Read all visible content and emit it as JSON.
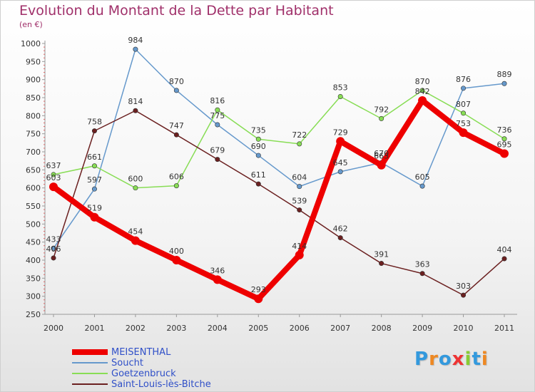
{
  "chart_data": {
    "type": "line",
    "title": "Evolution du Montant de la Dette par Habitant",
    "unit_label": "(en €)",
    "x": [
      "2000",
      "2001",
      "2002",
      "2003",
      "2004",
      "2005",
      "2006",
      "2007",
      "2008",
      "2009",
      "2010",
      "2011"
    ],
    "ylim": [
      250,
      1000
    ],
    "yticks": [
      250,
      300,
      350,
      400,
      450,
      500,
      550,
      600,
      650,
      700,
      750,
      800,
      850,
      900,
      950,
      1000
    ],
    "grid": false,
    "legend_position": "bottom-left",
    "series": [
      {
        "name": "MEISENTHAL",
        "color": "#ee0000",
        "values": [
          603,
          519,
          454,
          400,
          346,
          293,
          414,
          729,
          663,
          842,
          753,
          695
        ]
      },
      {
        "name": "Soucht",
        "color": "#6699cc",
        "values": [
          433,
          597,
          984,
          870,
          775,
          690,
          604,
          645,
          670,
          605,
          876,
          889
        ]
      },
      {
        "name": "Goetzenbruck",
        "color": "#88dd55",
        "values": [
          637,
          661,
          600,
          606,
          816,
          735,
          722,
          853,
          792,
          870,
          807,
          736
        ]
      },
      {
        "name": "Saint-Louis-lès-Bitche",
        "color": "#6b2020",
        "values": [
          406,
          758,
          814,
          747,
          679,
          611,
          539,
          462,
          391,
          363,
          303,
          404
        ]
      }
    ]
  },
  "logo": {
    "text": "Proxiti",
    "colors": [
      "#3399dd",
      "#ee8822",
      "#3399dd",
      "#ee3333",
      "#88cc33",
      "#3399dd",
      "#ee8822"
    ]
  }
}
